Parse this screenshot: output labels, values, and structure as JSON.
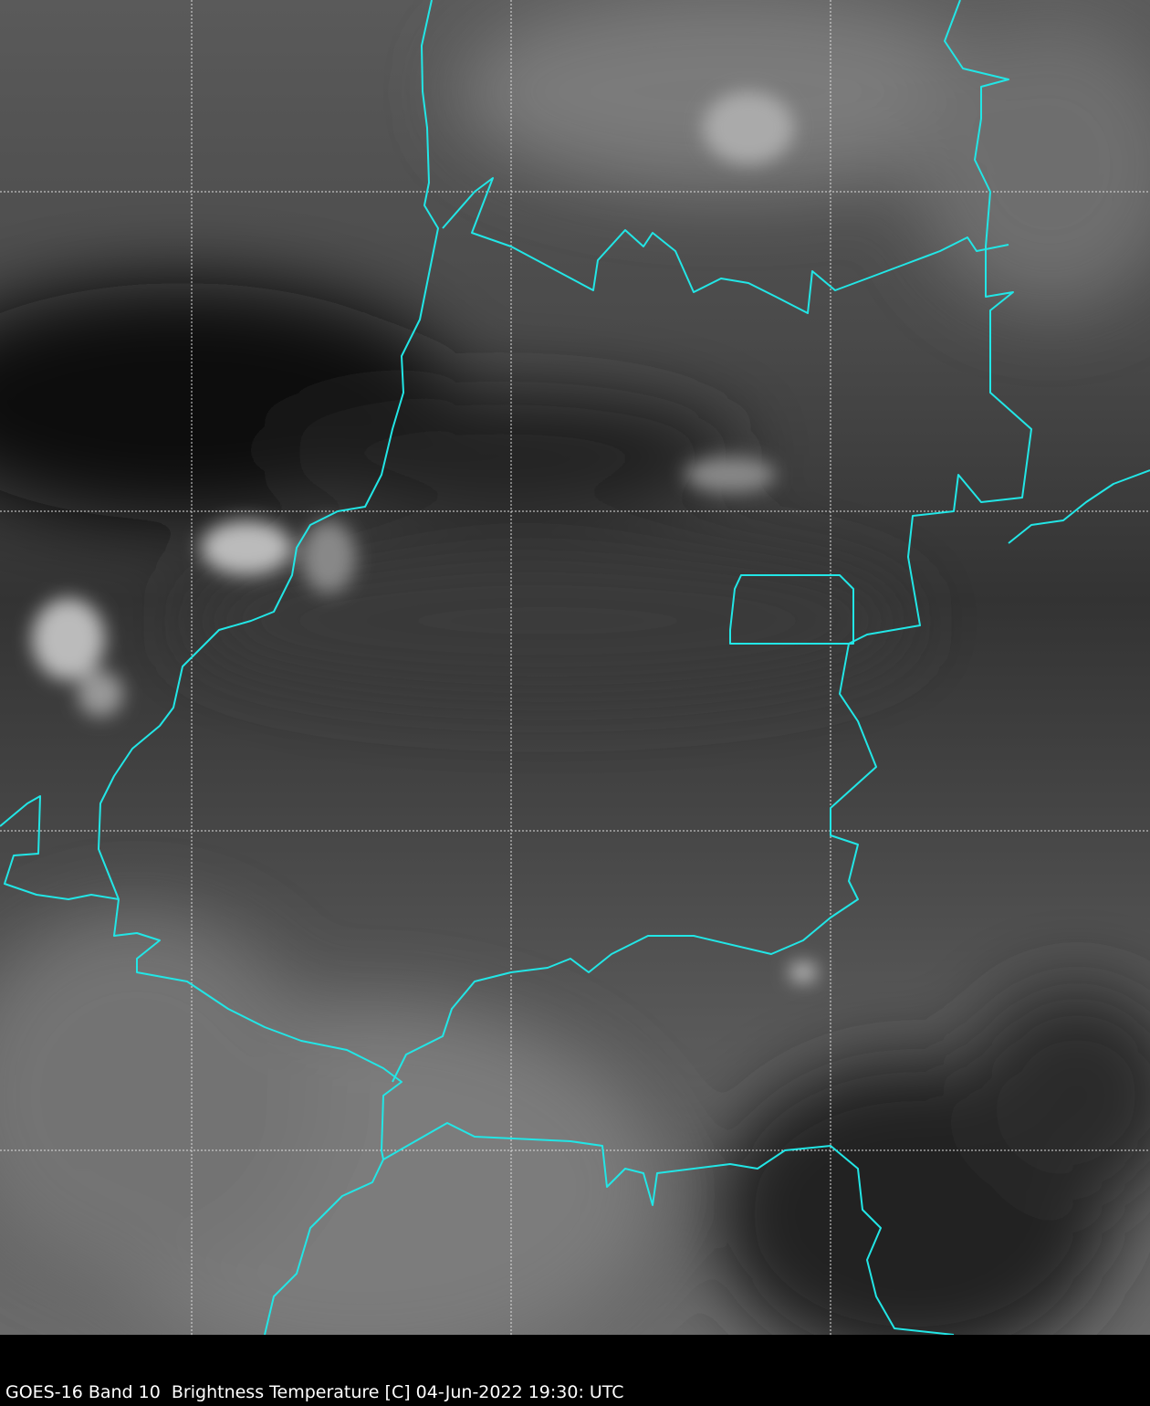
{
  "caption": "GOES-16 Band 10  Brightness Temperature [C] 04-Jun-2022 19:30: UTC",
  "colors": {
    "borders": "#22e6e6",
    "gridlines": "#dddddd",
    "background": "#000000"
  }
}
